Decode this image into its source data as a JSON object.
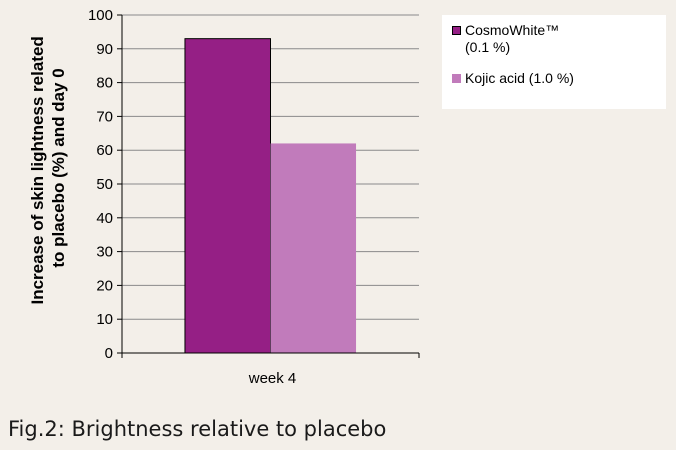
{
  "chart_data": {
    "type": "bar",
    "categories": [
      "week 4"
    ],
    "series": [
      {
        "name": "CosmoWhite™\n(0.1 %)",
        "values": [
          93
        ],
        "color": "#951f85"
      },
      {
        "name": "Kojic acid (1.0 %)",
        "values": [
          62
        ],
        "color": "#c17bbb"
      }
    ],
    "ylabel": "Increase of skin lightness related to placebo (%) and day 0",
    "ylim": [
      0,
      100
    ],
    "yticks": [
      0,
      10,
      20,
      30,
      40,
      50,
      60,
      70,
      80,
      90,
      100
    ],
    "grid": true,
    "legend_position": "top-right"
  },
  "caption": "Fig.2: Brightness relative to placebo"
}
